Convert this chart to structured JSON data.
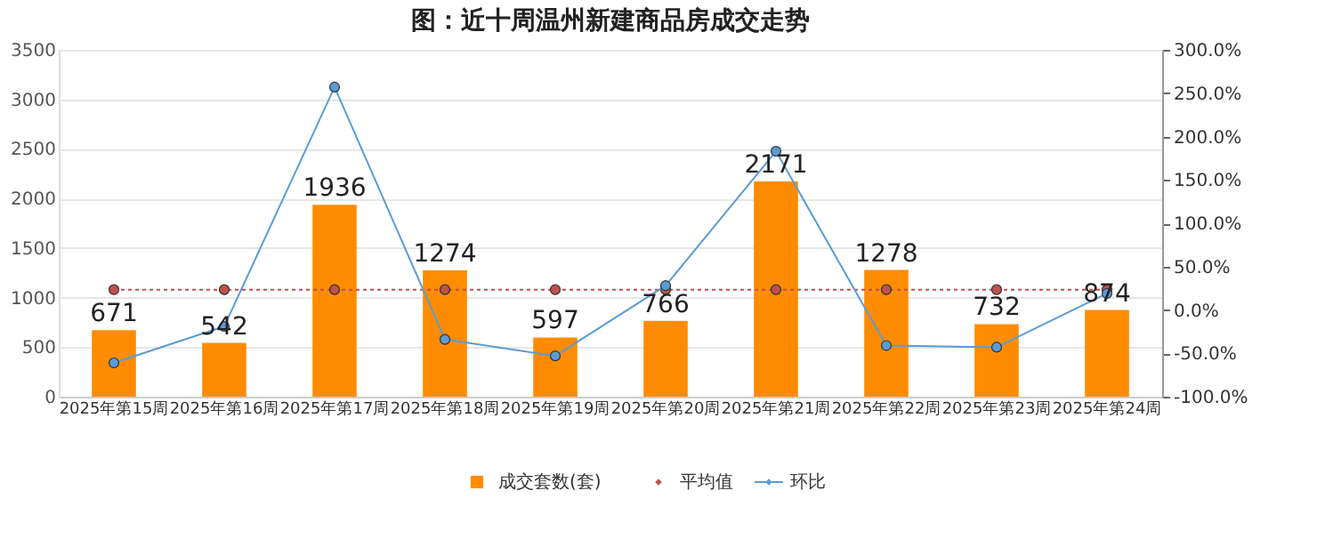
{
  "chart_data": {
    "type": "bar",
    "title": "图：近十周温州新建商品房成交走势",
    "categories": [
      "2025年第15周",
      "2025年第16周",
      "2025年第17周",
      "2025年第18周",
      "2025年第19周",
      "2025年第20周",
      "2025年第21周",
      "2025年第22周",
      "2025年第23周",
      "2025年第24周"
    ],
    "series": [
      {
        "name": "成交套数(套)",
        "color": "#ff8c00",
        "values": [
          671,
          542,
          1936,
          1274,
          597,
          766,
          2171,
          1278,
          732,
          874
        ],
        "value_labels": [
          "671",
          "542",
          "1936",
          "1274",
          "597",
          "766",
          "2171",
          "1278",
          "732",
          "874"
        ]
      },
      {
        "name": "平均值",
        "type": "line",
        "color": "#c0504d",
        "line_style": "dotted",
        "marker": "circle",
        "values": [
          1080,
          1080,
          1080,
          1080,
          1080,
          1080,
          1080,
          1080,
          1080,
          1080
        ]
      },
      {
        "name": "环比",
        "type": "line",
        "axis": "y2",
        "color": "#5b9bd5",
        "line_style": "solid",
        "marker": "circle",
        "values": [
          -61,
          -19,
          257,
          -34,
          -53,
          28,
          183,
          -41,
          -43,
          19
        ]
      }
    ],
    "ylim": [
      0,
      3500
    ],
    "yticks": [
      0,
      500,
      1000,
      1500,
      2000,
      2500,
      3000,
      3500
    ],
    "y2lim": [
      -100,
      300
    ],
    "y2ticks": [
      {
        "value": -100,
        "label": "-100.0%"
      },
      {
        "value": -50,
        "label": "-50.0%"
      },
      {
        "value": 0,
        "label": "0.0%"
      },
      {
        "value": 50,
        "label": "50.0%"
      },
      {
        "value": 100,
        "label": "100.0%"
      },
      {
        "value": 150,
        "label": "150.0%"
      },
      {
        "value": 200,
        "label": "200.0%"
      },
      {
        "value": 250,
        "label": "250.0%"
      },
      {
        "value": 300,
        "label": "300.0%"
      }
    ],
    "grid": "y",
    "legend": "bottom"
  }
}
